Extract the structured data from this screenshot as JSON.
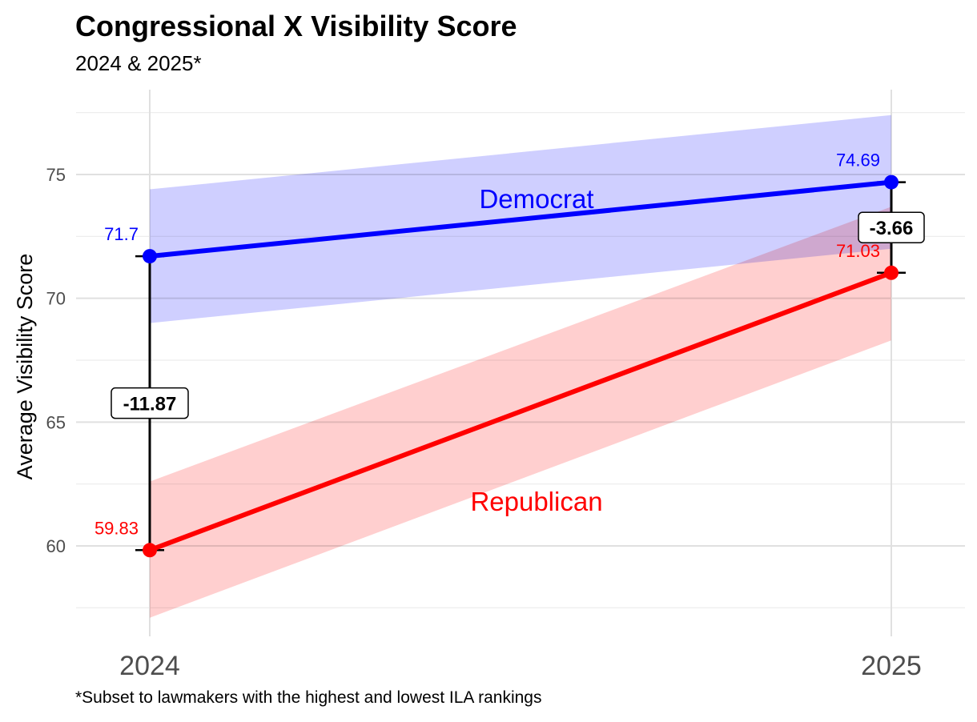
{
  "chart_data": {
    "type": "line",
    "title": "Congressional X Visibility Score",
    "subtitle": "2024 & 2025*",
    "caption": "*Subset to lawmakers with the highest and lowest ILA rankings",
    "ylabel": "Average Visibility Score",
    "xlabel": "",
    "x": [
      "2024",
      "2025"
    ],
    "ylim": [
      56.3,
      77.8
    ],
    "yticks": [
      60,
      65,
      70,
      75
    ],
    "grid": true,
    "legend": "none",
    "series": [
      {
        "name": "Democrat",
        "color": "#0000ff",
        "band_color": "#ccccff",
        "values": [
          71.7,
          74.69
        ],
        "value_labels": [
          "71.7",
          "74.69"
        ],
        "band_low": [
          69.0,
          72.0
        ],
        "band_high": [
          74.4,
          77.4
        ]
      },
      {
        "name": "Republican",
        "color": "#ff0000",
        "band_color": "#ffcccc",
        "values": [
          59.83,
          71.03
        ],
        "value_labels": [
          "59.83",
          "71.03"
        ],
        "band_low": [
          57.1,
          68.3
        ],
        "band_high": [
          62.6,
          73.7
        ]
      }
    ],
    "gaps": [
      {
        "x": "2024",
        "label": "-11.87",
        "value": -11.87,
        "from": 59.83,
        "to": 71.7
      },
      {
        "x": "2025",
        "label": "-3.66",
        "value": -3.66,
        "from": 71.03,
        "to": 74.69
      }
    ]
  }
}
